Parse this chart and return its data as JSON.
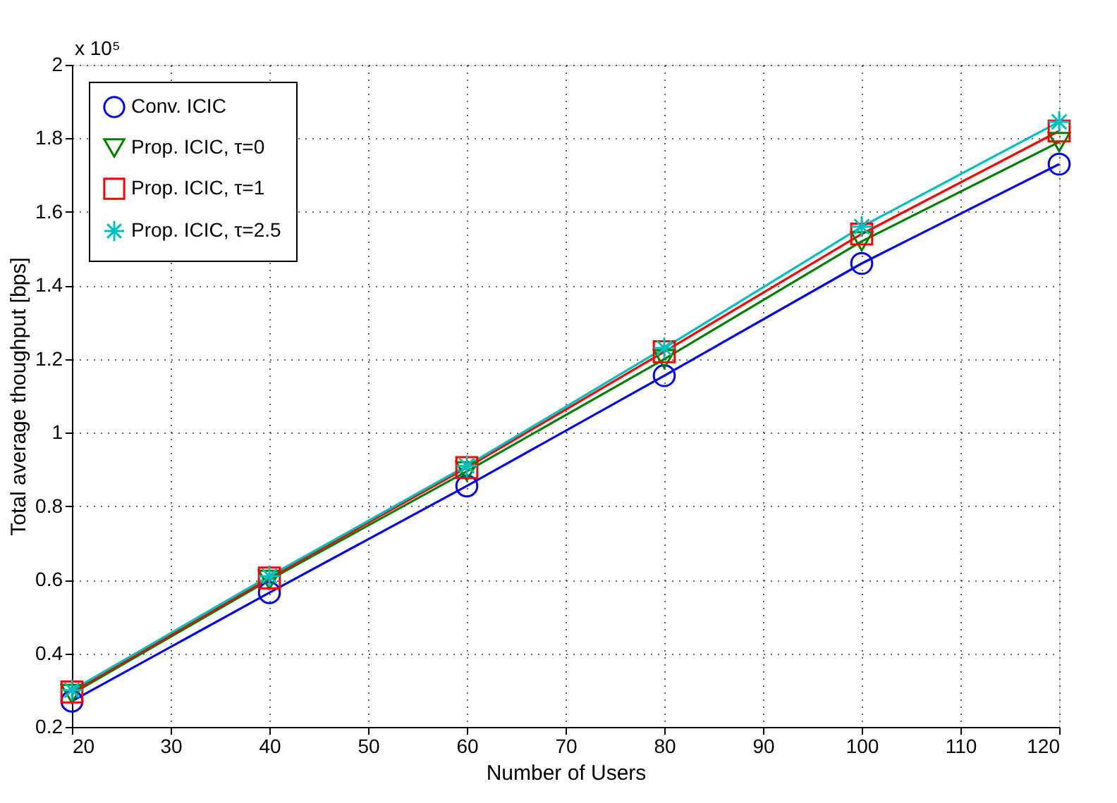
{
  "chart_data": {
    "type": "line",
    "xlabel": "Number of Users",
    "ylabel": "Total average thoughput [bps]",
    "annotations": [
      "x 10⁵"
    ],
    "x": [
      20,
      40,
      60,
      80,
      100,
      120
    ],
    "xlim": [
      20,
      120
    ],
    "xticks": [
      20,
      30,
      40,
      50,
      60,
      70,
      80,
      90,
      100,
      110,
      120
    ],
    "ylim": [
      0.2,
      2
    ],
    "yticks": [
      0.2,
      0.4,
      0.6,
      0.8,
      1,
      1.2,
      1.4,
      1.6,
      1.8,
      2
    ],
    "grid": true,
    "legend": "top left",
    "line_style": "solid",
    "series": [
      {
        "name": "Conv. ICIC",
        "color": "#0000ff",
        "marker": "circle",
        "values": [
          0.27,
          0.565,
          0.855,
          1.155,
          1.46,
          1.73
        ]
      },
      {
        "name": "Prop. ICIC, τ=0",
        "color": "#008000",
        "marker": "triangle",
        "values": [
          0.29,
          0.6,
          0.895,
          1.2,
          1.52,
          1.79
        ]
      },
      {
        "name": "Prop. ICIC, τ=1",
        "color": "#ff0000",
        "marker": "square",
        "values": [
          0.295,
          0.605,
          0.905,
          1.22,
          1.54,
          1.82
        ]
      },
      {
        "name": "Prop. ICIC, τ=2.5",
        "color": "#00bfbf",
        "marker": "cross",
        "values": [
          0.3,
          0.61,
          0.91,
          1.23,
          1.56,
          1.845
        ]
      }
    ]
  }
}
